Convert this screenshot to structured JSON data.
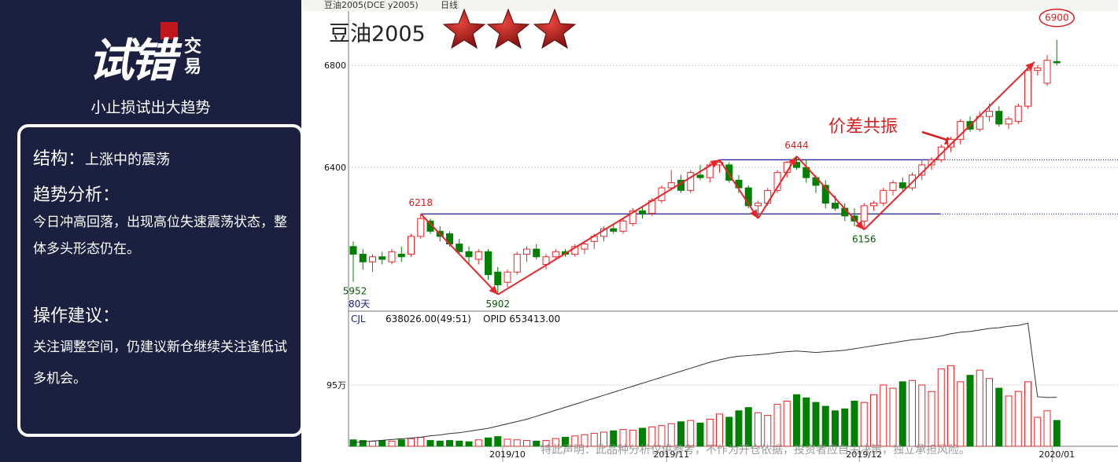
{
  "sidebar": {
    "logo_main": "试错",
    "logo_side": "交易",
    "slogan": "小止损试出大趋势",
    "structure_label": "结构：",
    "structure": "上涨中的震荡",
    "trend_heading": "趋势分析：",
    "trend_text": "今日冲高回落，出现高位失速震荡状态，整体多头形态仍在。",
    "advice_heading": "操作建议：",
    "advice_text": "关注调整空间，仍建议新仓继续关注逢低试多机会。"
  },
  "header": {
    "instrument": "豆油2005(DCE y2005)",
    "period": "日线"
  },
  "disclaimer": "特此声明：此品种分析仅供参考，不作为开仓依据，投资者应自主决策，独立承担风险。",
  "chart_data": [
    {
      "type": "candlestick",
      "title": "豆油2005",
      "callout": "价差共振",
      "window_label": "80天",
      "up_color": "#e8262a",
      "down_color": "#008000",
      "grid": true,
      "ylim": [
        5840,
        7010
      ],
      "yticks": [
        6400,
        6800
      ],
      "annotations": [
        {
          "value": 5952,
          "label": "5952"
        },
        {
          "value": 6218,
          "label": "6218"
        },
        {
          "value": 5902,
          "label": "5902"
        },
        {
          "value": 6444,
          "label": "6444"
        },
        {
          "value": 6156,
          "label": "6156"
        },
        {
          "value": 6900,
          "label": "6900"
        }
      ],
      "categories": [
        null,
        null,
        null,
        null,
        null,
        null,
        null,
        null,
        null,
        null,
        null,
        null,
        null,
        null,
        null,
        null,
        "2019/10",
        null,
        null,
        null,
        null,
        null,
        null,
        null,
        null,
        null,
        null,
        null,
        null,
        null,
        null,
        null,
        null,
        "2019/11",
        null,
        null,
        null,
        null,
        null,
        null,
        null,
        null,
        null,
        null,
        null,
        null,
        null,
        null,
        null,
        null,
        null,
        null,
        null,
        "2019/12",
        null,
        null,
        null,
        null,
        null,
        null,
        null,
        null,
        null,
        null,
        null,
        null,
        null,
        null,
        null,
        null,
        null,
        null,
        null,
        "2020/01"
      ],
      "open": [
        6090,
        6060,
        6030,
        6050,
        6030,
        6060,
        6060,
        6130,
        6190,
        6150,
        6140,
        6100,
        6070,
        6040,
        6070,
        5990,
        5950,
        5990,
        6060,
        6080,
        6020,
        6050,
        6070,
        6060,
        6080,
        6110,
        6130,
        6160,
        6150,
        6180,
        6230,
        6220,
        6270,
        6320,
        6350,
        6310,
        6370,
        6360,
        6410,
        6410,
        6350,
        6320,
        6250,
        6260,
        6310,
        6380,
        6420,
        6400,
        6360,
        6330,
        6260,
        6240,
        6210,
        6190,
        6250,
        6260,
        6310,
        6340,
        6320,
        6370,
        6410,
        6430,
        6480,
        6510,
        6580,
        6550,
        6600,
        6620,
        6570,
        6580,
        6640,
        6780,
        6730,
        6815
      ],
      "high": [
        6110,
        6080,
        6060,
        6070,
        6080,
        6090,
        6140,
        6218,
        6200,
        6170,
        6150,
        6120,
        6090,
        6080,
        6080,
        6010,
        6000,
        6070,
        6090,
        6100,
        6060,
        6080,
        6080,
        6100,
        6110,
        6140,
        6170,
        6180,
        6200,
        6240,
        6250,
        6280,
        6330,
        6390,
        6370,
        6390,
        6410,
        6420,
        6430,
        6420,
        6370,
        6330,
        6270,
        6320,
        6390,
        6425,
        6444,
        6430,
        6370,
        6350,
        6290,
        6260,
        6240,
        6260,
        6270,
        6320,
        6350,
        6360,
        6380,
        6430,
        6440,
        6490,
        6520,
        6590,
        6600,
        6620,
        6650,
        6640,
        6600,
        6650,
        6790,
        6800,
        6840,
        6900
      ],
      "low": [
        5952,
        6000,
        5990,
        6020,
        6020,
        6030,
        6050,
        6120,
        6140,
        6110,
        6090,
        6060,
        6020,
        6020,
        5960,
        5902,
        5930,
        5980,
        6030,
        6040,
        6000,
        6040,
        6050,
        6050,
        6060,
        6080,
        6110,
        6140,
        6140,
        6170,
        6200,
        6210,
        6260,
        6310,
        6300,
        6300,
        6350,
        6340,
        6380,
        6340,
        6300,
        6240,
        6200,
        6250,
        6300,
        6360,
        6390,
        6340,
        6300,
        6240,
        6230,
        6190,
        6170,
        6156,
        6230,
        6250,
        6290,
        6310,
        6310,
        6350,
        6390,
        6420,
        6460,
        6490,
        6540,
        6540,
        6580,
        6560,
        6550,
        6570,
        6630,
        6760,
        6720,
        6800
      ],
      "close": [
        6060,
        6030,
        6050,
        6040,
        6070,
        6050,
        6130,
        6200,
        6150,
        6130,
        6100,
        6070,
        6050,
        6070,
        5980,
        5940,
        5990,
        6060,
        6080,
        6050,
        6050,
        6070,
        6060,
        6090,
        6100,
        6130,
        6160,
        6150,
        6190,
        6230,
        6220,
        6270,
        6320,
        6340,
        6310,
        6380,
        6360,
        6410,
        6420,
        6350,
        6320,
        6250,
        6260,
        6310,
        6380,
        6420,
        6400,
        6360,
        6330,
        6260,
        6240,
        6210,
        6190,
        6250,
        6260,
        6310,
        6340,
        6320,
        6370,
        6410,
        6430,
        6480,
        6510,
        6580,
        6550,
        6600,
        6620,
        6570,
        6590,
        6640,
        6780,
        6790,
        6820,
        6810
      ]
    },
    {
      "type": "bar",
      "indicator": "CJL",
      "readout": "638026.00(49:51)",
      "opid_label": "OPID 653413.00",
      "up_color": "#e8262a",
      "down_color": "#008000",
      "line_color": "#333333",
      "ylim": [
        0,
        207
      ],
      "yticks": [
        {
          "value": 95,
          "label": "95万"
        }
      ],
      "y2lim": [
        0,
        178
      ],
      "values": [
        10,
        9,
        8,
        9,
        8,
        10,
        12,
        14,
        9,
        8,
        9,
        8,
        7,
        10,
        13,
        15,
        11,
        10,
        9,
        8,
        9,
        12,
        14,
        16,
        18,
        20,
        22,
        24,
        26,
        25,
        28,
        30,
        32,
        35,
        38,
        40,
        36,
        42,
        50,
        45,
        55,
        60,
        52,
        48,
        65,
        70,
        80,
        75,
        68,
        62,
        55,
        58,
        70,
        68,
        80,
        95,
        90,
        100,
        102,
        95,
        85,
        120,
        125,
        100,
        110,
        118,
        105,
        90,
        78,
        85,
        100,
        45,
        55,
        40
      ],
      "opid": [
        5,
        6,
        7,
        8,
        9,
        10,
        11,
        12,
        14,
        15,
        17,
        18,
        20,
        22,
        24,
        27,
        30,
        33,
        36,
        40,
        44,
        48,
        52,
        56,
        60,
        64,
        68,
        72,
        76,
        80,
        84,
        88,
        92,
        96,
        100,
        104,
        108,
        112,
        115,
        118,
        120,
        121,
        122,
        123,
        125,
        126,
        127,
        126,
        125,
        126,
        127,
        128,
        130,
        132,
        134,
        136,
        138,
        140,
        142,
        143,
        145,
        147,
        150,
        152,
        153,
        155,
        157,
        158,
        160,
        161,
        164,
        66,
        65,
        65.34
      ]
    }
  ]
}
